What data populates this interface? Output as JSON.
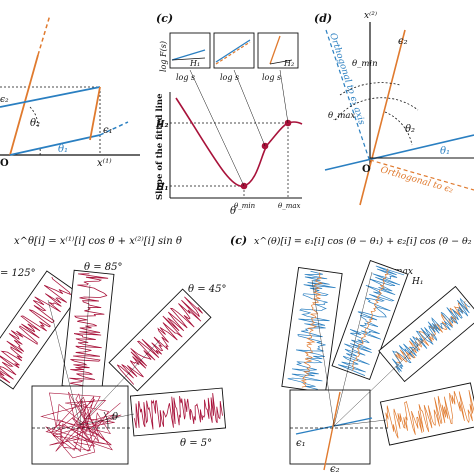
{
  "panel_top_left": {
    "label_theta2": "θ₂",
    "label_theta1": "θ₁",
    "label_eps1": "ϵ₁",
    "label_eps2": "ϵ₂",
    "label_origin": "O",
    "label_x1": "x⁽¹⁾"
  },
  "panel_c_top": {
    "tag": "(c)",
    "y_inset_label": "log F(s)",
    "inset_xlabel": "log s",
    "inset_h1": "H₁",
    "inset_h2": "H₂",
    "ylabel": "Slope of the fitted line",
    "tick_h2": "H₂",
    "tick_h1": "H₁",
    "xlabel": "θ",
    "theta_min": "θ_min",
    "theta_max": "θ_max"
  },
  "panel_d": {
    "tag": "(d)",
    "x2_label": "x⁽²⁾",
    "orth_e1": "Orthogonal to ϵ₁ axis",
    "orth_e2": "Orthogonal to ϵ₂",
    "theta_min": "θ_min",
    "theta_max": "θ_max",
    "theta2": "θ₂",
    "theta1": "θ₁",
    "eps2": "ϵ₂",
    "origin": "O"
  },
  "panel_bottom_left": {
    "equation": "x^θ[i] = x⁽¹⁾[i] cos θ + x⁽²⁾[i] sin θ",
    "t125": "= 125°",
    "t85": "θ = 85°",
    "t45": "θ = 45°",
    "t5": "θ = 5°",
    "theta": "θ"
  },
  "panel_bottom_right": {
    "tag": "(c)",
    "equation": "x^(θ)[i] = ϵ₁[i] cos (θ − θ₁) + ϵ₂[i] cos (θ − θ₂",
    "theta_max": "θ_max",
    "h1": "H₁",
    "eps1": "ϵ₁",
    "eps2": "ϵ₂"
  },
  "colors": {
    "blue": "#2a7fc1",
    "orange": "#e07a2e",
    "crimson": "#a8123a",
    "dark": "#111111"
  }
}
